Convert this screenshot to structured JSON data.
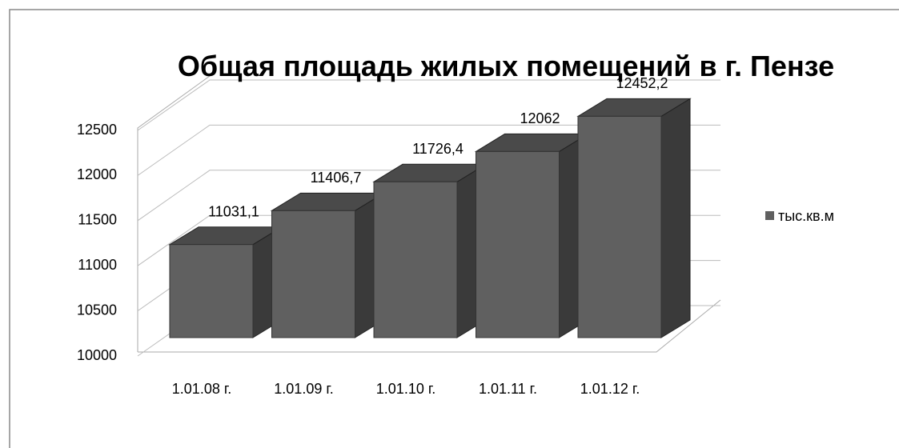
{
  "chart_data": {
    "type": "bar3d",
    "title": "Общая площадь жилых помещений в г. Пензе",
    "categories": [
      "1.01.08 г.",
      "1.01.09 г.",
      "1.01.10 г.",
      "1.01.11 г.",
      "1.01.12 г."
    ],
    "series": [
      {
        "name": "тыс.кв.м",
        "color": "#606060",
        "values": [
          11031.1,
          11406.7,
          11726.4,
          12062,
          12452.2
        ],
        "value_labels": [
          "11031,1",
          "11406,7",
          "11726,4",
          "12062",
          "12452,2"
        ]
      }
    ],
    "ylim": [
      10000,
      12500
    ],
    "yticks": [
      10000,
      10500,
      11000,
      11500,
      12000,
      12500
    ],
    "grid": true,
    "legend": "right"
  }
}
